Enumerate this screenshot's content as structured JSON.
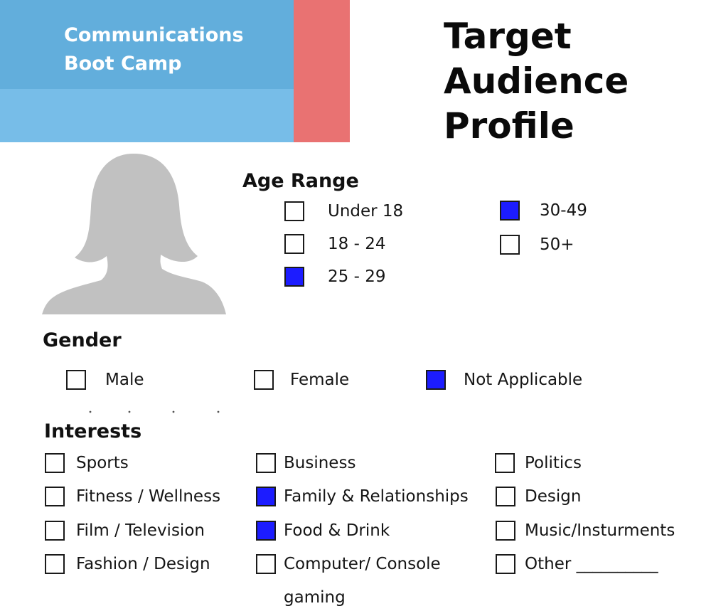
{
  "header": {
    "org_line1": "Communications",
    "org_line2": "Boot Camp",
    "title_line1": "Target",
    "title_line2": "Audience",
    "title_line3": "Profile",
    "colors": {
      "banner_top": "#62aedc",
      "banner_bottom": "#77bde8",
      "accent": "#e97272",
      "checked": "#1c1cff"
    }
  },
  "avatar": {
    "icon": "person-silhouette-icon"
  },
  "age_range": {
    "title": "Age Range",
    "options": [
      {
        "label": "Under 18",
        "checked": false
      },
      {
        "label": "18 - 24",
        "checked": false
      },
      {
        "label": "25 - 29",
        "checked": true
      },
      {
        "label": "30-49",
        "checked": true
      },
      {
        "label": "50+",
        "checked": false
      }
    ]
  },
  "gender": {
    "title": "Gender",
    "options": [
      {
        "label": "Male",
        "checked": false
      },
      {
        "label": "Female",
        "checked": false
      },
      {
        "label": "Not Applicable",
        "checked": true
      }
    ]
  },
  "interests": {
    "title": "Interests",
    "options": [
      {
        "label": "Sports",
        "checked": false
      },
      {
        "label": "Fitness / Wellness",
        "checked": false
      },
      {
        "label": "Film / Television",
        "checked": false
      },
      {
        "label": "Fashion / Design",
        "checked": false
      },
      {
        "label": "Business",
        "checked": false
      },
      {
        "label": "Family & Relationships",
        "checked": true
      },
      {
        "label": "Food & Drink",
        "checked": true
      },
      {
        "label": "Computer/ Console",
        "label_line2": "gaming",
        "checked": false
      },
      {
        "label": "Politics",
        "checked": false
      },
      {
        "label": "Design",
        "checked": false
      },
      {
        "label": "Music/Insturments",
        "checked": false
      },
      {
        "label": "Other __________",
        "checked": false
      }
    ]
  }
}
